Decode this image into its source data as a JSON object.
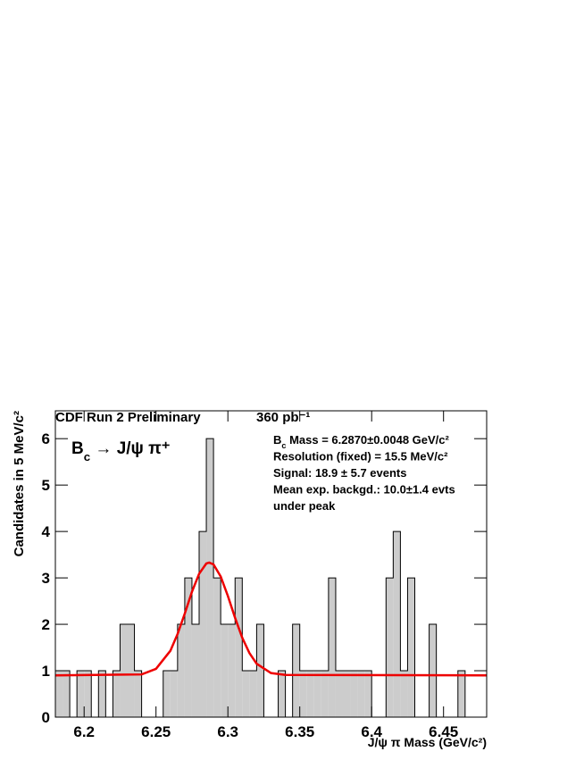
{
  "chart_data": {
    "type": "histogram",
    "header_left": "CDF Run 2 Preliminary",
    "header_right": "360 pb⁻¹",
    "xlabel": "J/ψ π Mass (GeV/c²)",
    "ylabel": "Candidates in 5 MeV/c²",
    "annotation": [
      [
        "B",
        {
          "sub": "c"
        },
        " → J/ψ π⁺"
      ]
    ],
    "info": [
      [
        "B",
        {
          "sub": "c"
        },
        " Mass = 6.2870±0.0048 GeV/c²"
      ],
      [
        "Resolution (fixed) = 15.5 MeV/c²"
      ],
      [
        "Signal: 18.9 ± 5.7 events"
      ],
      [
        "Mean exp. backgd.: 10.0±1.4 evts"
      ],
      [
        "under peak"
      ]
    ],
    "bins": [
      6.18,
      6.185,
      6.19,
      6.195,
      6.2,
      6.205,
      6.21,
      6.215,
      6.22,
      6.225,
      6.23,
      6.235,
      6.24,
      6.245,
      6.25,
      6.255,
      6.26,
      6.265,
      6.27,
      6.275,
      6.28,
      6.285,
      6.29,
      6.295,
      6.3,
      6.305,
      6.31,
      6.315,
      6.32,
      6.325,
      6.33,
      6.335,
      6.34,
      6.345,
      6.35,
      6.355,
      6.36,
      6.365,
      6.37,
      6.375,
      6.38,
      6.385,
      6.39,
      6.395,
      6.4,
      6.405,
      6.41,
      6.415,
      6.42,
      6.425,
      6.43,
      6.435,
      6.44,
      6.445,
      6.45,
      6.455,
      6.46,
      6.465,
      6.47,
      6.475,
      6.48
    ],
    "counts": [
      1,
      1,
      0,
      1,
      1,
      0,
      1,
      0,
      1,
      2,
      2,
      1,
      0,
      0,
      0,
      1,
      1,
      2,
      3,
      2,
      4,
      6,
      3,
      2,
      2,
      3,
      1,
      1,
      2,
      0,
      0,
      1,
      0,
      2,
      1,
      1,
      1,
      1,
      3,
      1,
      1,
      1,
      1,
      1,
      0,
      0,
      3,
      4,
      1,
      3,
      0,
      0,
      2,
      0,
      0,
      0,
      1,
      0,
      0,
      0
    ],
    "color": "#cccccc",
    "fit": {
      "color": "#ee0000",
      "x": [
        6.18,
        6.24,
        6.25,
        6.26,
        6.265,
        6.27,
        6.275,
        6.28,
        6.285,
        6.287,
        6.29,
        6.295,
        6.3,
        6.305,
        6.31,
        6.315,
        6.32,
        6.33,
        6.34,
        6.48
      ],
      "values": [
        0.9,
        0.92,
        1.04,
        1.43,
        1.79,
        2.23,
        2.7,
        3.09,
        3.31,
        3.33,
        3.29,
        3.03,
        2.61,
        2.14,
        1.71,
        1.38,
        1.15,
        0.95,
        0.91,
        0.9
      ]
    },
    "xlim": [
      6.18,
      6.48
    ],
    "xticks": [
      6.2,
      6.25,
      6.3,
      6.35,
      6.4,
      6.45
    ],
    "ylim": [
      0,
      6.6
    ],
    "yticks": [
      0,
      1,
      2,
      3,
      4,
      5,
      6
    ]
  }
}
